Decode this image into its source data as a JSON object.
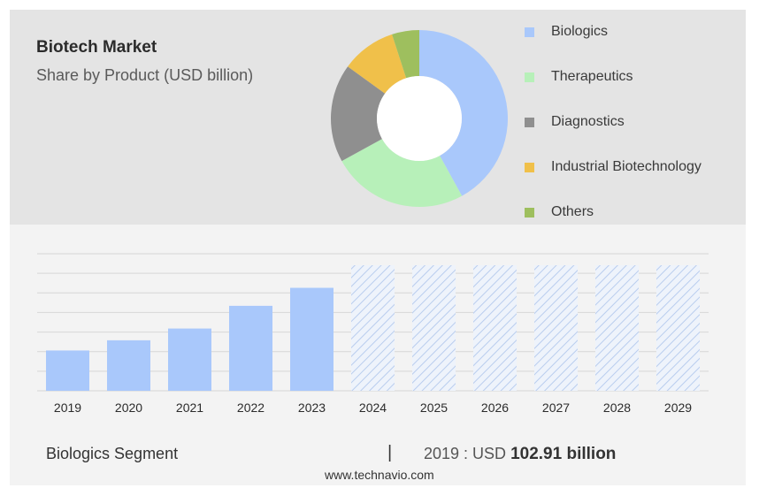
{
  "header": {
    "title": "Biotech Market",
    "subtitle": "Share by Product (USD billion)"
  },
  "footer": {
    "segment_label": "Biologics Segment",
    "separator": "|",
    "year_value_prefix": "2019 : USD",
    "value_text": "102.91 billion",
    "source": "www.technavio.com"
  },
  "chart_data": [
    {
      "type": "pie",
      "variant": "donut",
      "legend_position": "right",
      "labels": [
        "Biologics",
        "Therapeutics",
        "Diagnostics",
        "Industrial Biotechnology",
        "Others"
      ],
      "values": [
        42,
        25,
        18,
        10,
        5
      ],
      "colors": [
        "#a9c8fb",
        "#b7f0b9",
        "#8f8f8f",
        "#f0c04a",
        "#9ebf5e"
      ]
    },
    {
      "type": "bar",
      "categories": [
        "2019",
        "2020",
        "2021",
        "2022",
        "2023",
        "2024",
        "2025",
        "2026",
        "2027",
        "2028",
        "2029"
      ],
      "values": [
        102.91,
        129,
        159,
        217,
        263,
        null,
        null,
        null,
        null,
        null,
        null
      ],
      "forecast_categories": [
        "2024",
        "2025",
        "2026",
        "2027",
        "2028",
        "2029"
      ],
      "ylim": [
        0,
        350
      ],
      "y_axis_labels_shown": false,
      "grid": true,
      "bar_color": "#a9c8fb",
      "forecast_style": "hatched"
    }
  ]
}
